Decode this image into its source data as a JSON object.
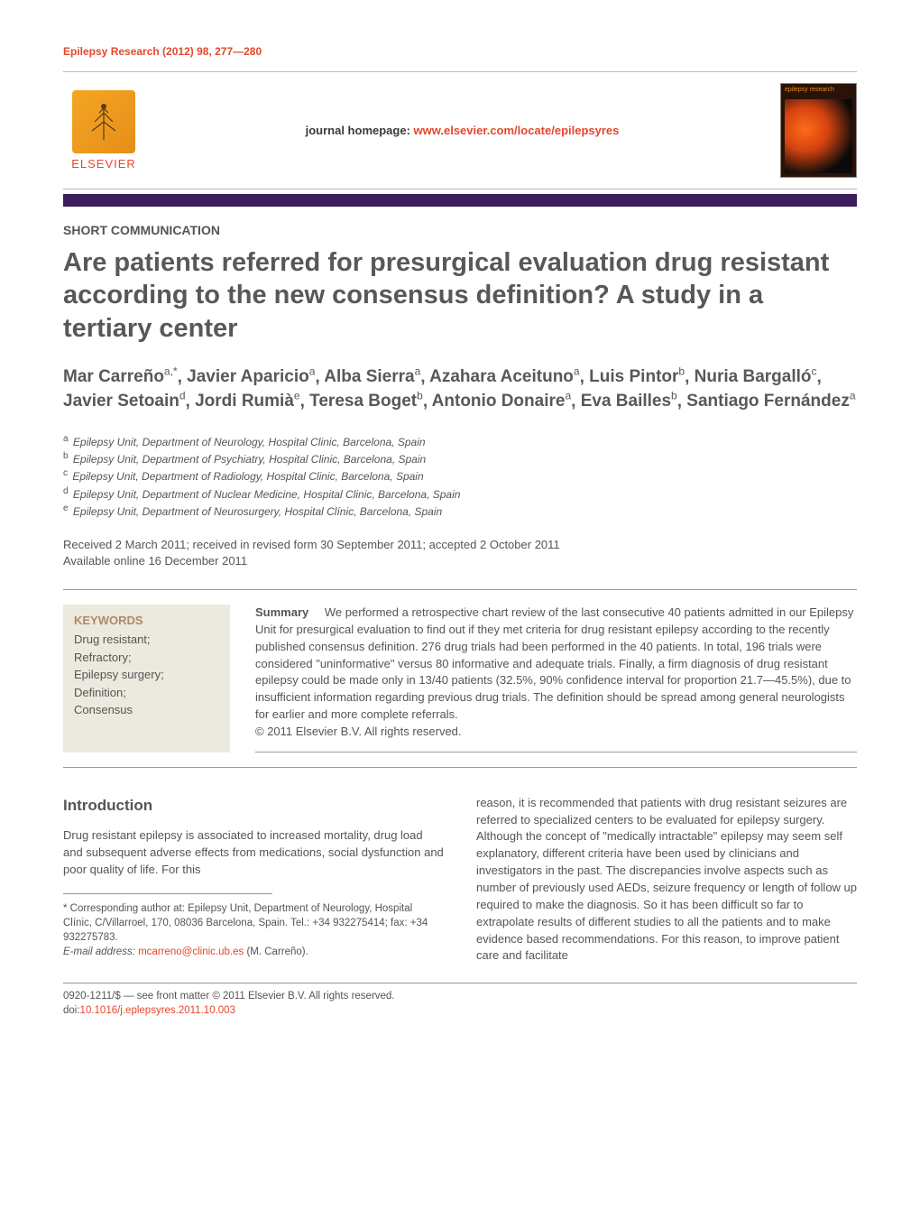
{
  "journal": {
    "citation": "Epilepsy Research (2012) 98, 277—280",
    "homepage_label": "journal homepage: ",
    "homepage_url": "www.elsevier.com/locate/epilepsyres",
    "publisher": "ELSEVIER",
    "cover_label": "epilepsy research"
  },
  "article": {
    "type": "SHORT COMMUNICATION",
    "title": "Are patients referred for presurgical evaluation drug resistant according to the new consensus definition? A study in a tertiary center",
    "dates_line1": "Received 2 March 2011; received in revised form 30 September 2011; accepted 2 October 2011",
    "dates_line2": "Available online 16 December 2011"
  },
  "authors": [
    {
      "name": "Mar Carreño",
      "aff": "a,*"
    },
    {
      "name": "Javier Aparicio",
      "aff": "a"
    },
    {
      "name": "Alba Sierra",
      "aff": "a"
    },
    {
      "name": "Azahara Aceituno",
      "aff": "a"
    },
    {
      "name": "Luis Pintor",
      "aff": "b"
    },
    {
      "name": "Nuria Bargalló",
      "aff": "c"
    },
    {
      "name": "Javier Setoain",
      "aff": "d"
    },
    {
      "name": "Jordi Rumià",
      "aff": "e"
    },
    {
      "name": "Teresa Boget",
      "aff": "b"
    },
    {
      "name": "Antonio Donaire",
      "aff": "a"
    },
    {
      "name": "Eva Bailles",
      "aff": "b"
    },
    {
      "name": "Santiago Fernández",
      "aff": "a"
    }
  ],
  "affiliations": [
    {
      "sup": "a",
      "text": "Epilepsy Unit, Department of Neurology, Hospital Clinic, Barcelona, Spain"
    },
    {
      "sup": "b",
      "text": "Epilepsy Unit, Department of Psychiatry, Hospital Clinic, Barcelona, Spain"
    },
    {
      "sup": "c",
      "text": "Epilepsy Unit, Department of Radiology, Hospital Clinic, Barcelona, Spain"
    },
    {
      "sup": "d",
      "text": "Epilepsy Unit, Department of Nuclear Medicine, Hospital Clinic, Barcelona, Spain"
    },
    {
      "sup": "e",
      "text": "Epilepsy Unit, Department of Neurosurgery, Hospital Clínic, Barcelona, Spain"
    }
  ],
  "keywords": {
    "heading": "KEYWORDS",
    "items": [
      "Drug resistant;",
      "Refractory;",
      "Epilepsy surgery;",
      "Definition;",
      "Consensus"
    ]
  },
  "summary": {
    "label": "Summary",
    "text": "We performed a retrospective chart review of the last consecutive 40 patients admitted in our Epilepsy Unit for presurgical evaluation to find out if they met criteria for drug resistant epilepsy according to the recently published consensus definition. 276 drug trials had been performed in the 40 patients. In total, 196 trials were considered \"uninformative\" versus 80 informative and adequate trials. Finally, a firm diagnosis of drug resistant epilepsy could be made only in 13/40 patients (32.5%, 90% confidence interval for proportion 21.7—45.5%), due to insufficient information regarding previous drug trials. The definition should be spread among general neurologists for earlier and more complete referrals.",
    "copyright": "© 2011 Elsevier B.V. All rights reserved."
  },
  "intro": {
    "heading": "Introduction",
    "col1": "Drug resistant epilepsy is associated to increased mortality, drug load and subsequent adverse effects from medications, social dysfunction and poor quality of life. For this",
    "col2": "reason, it is recommended that patients with drug resistant seizures are referred to specialized centers to be evaluated for epilepsy surgery. Although the concept of \"medically intractable\" epilepsy may seem self explanatory, different criteria have been used by clinicians and investigators in the past. The discrepancies involve aspects such as number of previously used AEDs, seizure frequency or length of follow up required to make the diagnosis. So it has been difficult so far to extrapolate results of different studies to all the patients and to make evidence based recommendations. For this reason, to improve patient care and facilitate"
  },
  "footnote": {
    "corresponding": "* Corresponding author at: Epilepsy Unit, Department of Neurology, Hospital Clínic, C/Villarroel, 170, 08036 Barcelona, Spain. Tel.: +34 932275414; fax: +34 932275783.",
    "email_label": "E-mail address:",
    "email": "mcarreno@clinic.ub.es",
    "email_name": "(M. Carreño)."
  },
  "copyright_footer": {
    "line": "0920-1211/$ — see front matter © 2011 Elsevier B.V. All rights reserved.",
    "doi_label": "doi:",
    "doi": "10.1016/j.eplepsyres.2011.10.003"
  },
  "colors": {
    "accent_orange": "#e5472b",
    "purple_bar": "#3d1e5c",
    "keywords_bg": "#ece9de",
    "keywords_heading": "#b08968",
    "text_gray": "#555555"
  }
}
